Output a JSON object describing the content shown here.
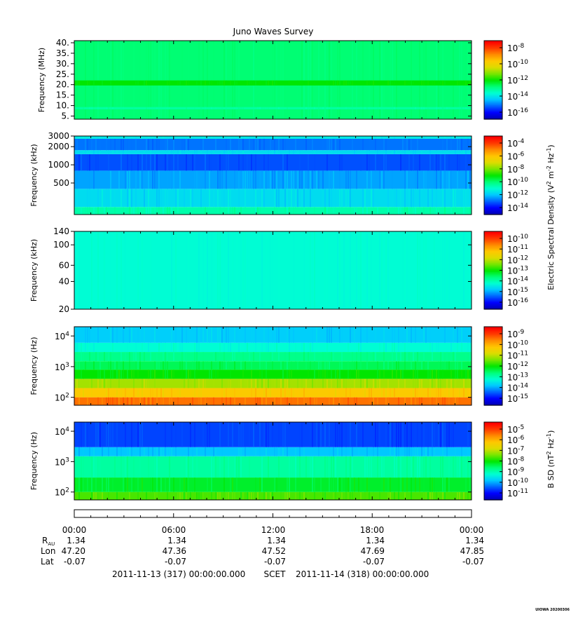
{
  "chart_data": {
    "type": "heatmap",
    "title": "Juno Waves Survey",
    "colorscale": [
      "#0000b4",
      "#0000ff",
      "#0064ff",
      "#00c8ff",
      "#00ffd2",
      "#00ff78",
      "#00e600",
      "#78e600",
      "#dcdc00",
      "#ffc800",
      "#ff8c00",
      "#ff3c00",
      "#ff0000"
    ],
    "panels": [
      {
        "ylabel": "Frequency (MHz)",
        "yscale": "linear",
        "ylim": [
          3.5,
          41
        ],
        "yticks": [
          {
            "v": 40,
            "label": "40."
          },
          {
            "v": 35,
            "label": "35."
          },
          {
            "v": 30,
            "label": "30."
          },
          {
            "v": 25,
            "label": "25."
          },
          {
            "v": 20,
            "label": "20."
          },
          {
            "v": 15,
            "label": "15."
          },
          {
            "v": 10,
            "label": "10."
          },
          {
            "v": 5,
            "label": "5."
          }
        ],
        "cbar": {
          "ticks": [
            {
              "m": "10",
              "e": "-8"
            },
            {
              "m": "10",
              "e": "-10"
            },
            {
              "m": "10",
              "e": "-12"
            },
            {
              "m": "10",
              "e": "-14"
            },
            {
              "m": "10",
              "e": "-16"
            }
          ]
        },
        "bands": [
          {
            "from": 3.5,
            "to": 41,
            "level": 0.42,
            "noise": 0.02
          },
          {
            "from": 19.6,
            "to": 22.0,
            "level": 0.5,
            "noise": 0.02
          },
          {
            "from": 8.2,
            "to": 9.3,
            "level": 0.38,
            "noise": 0.02
          }
        ]
      },
      {
        "ylabel": "Frequency (kHz)",
        "yscale": "log",
        "ylim": [
          150,
          3000
        ],
        "yticks": [
          {
            "v": 3000,
            "label": "3000"
          },
          {
            "v": 2000,
            "label": "2000"
          },
          {
            "v": 1000,
            "label": "1000"
          },
          {
            "v": 500,
            "label": "500"
          }
        ],
        "cbar": {
          "ticks": [
            {
              "m": "10",
              "e": "-4"
            },
            {
              "m": "10",
              "e": "-6"
            },
            {
              "m": "10",
              "e": "-8"
            },
            {
              "m": "10",
              "e": "-10"
            },
            {
              "m": "10",
              "e": "-12"
            },
            {
              "m": "10",
              "e": "-14"
            }
          ]
        },
        "bands": [
          {
            "from": 150,
            "to": 200,
            "level": 0.37,
            "noise": 0.05
          },
          {
            "from": 200,
            "to": 400,
            "level": 0.28,
            "noise": 0.05
          },
          {
            "from": 400,
            "to": 800,
            "level": 0.22,
            "noise": 0.05
          },
          {
            "from": 800,
            "to": 1500,
            "level": 0.15,
            "noise": 0.04
          },
          {
            "from": 1500,
            "to": 1750,
            "level": 0.28,
            "noise": 0.03
          },
          {
            "from": 1750,
            "to": 2700,
            "level": 0.18,
            "noise": 0.03
          },
          {
            "from": 2700,
            "to": 3000,
            "level": 0.3,
            "noise": 0.03
          }
        ]
      },
      {
        "ylabel": "Frequency (kHz)",
        "yscale": "log",
        "ylim": [
          20,
          140
        ],
        "yticks": [
          {
            "v": 140,
            "label": "140"
          },
          {
            "v": 100,
            "label": "100"
          },
          {
            "v": 60,
            "label": "60"
          },
          {
            "v": 40,
            "label": "40"
          },
          {
            "v": 20,
            "label": "20"
          }
        ],
        "cbar": {
          "ticks": [
            {
              "m": "10",
              "e": "-10"
            },
            {
              "m": "10",
              "e": "-11"
            },
            {
              "m": "10",
              "e": "-12"
            },
            {
              "m": "10",
              "e": "-13"
            },
            {
              "m": "10",
              "e": "-14"
            },
            {
              "m": "10",
              "e": "-15"
            },
            {
              "m": "10",
              "e": "-16"
            }
          ]
        },
        "bands": [
          {
            "from": 20,
            "to": 140,
            "level": 0.33,
            "noise": 0.02
          }
        ]
      },
      {
        "ylabel": "Frequency (Hz)",
        "yscale": "log",
        "ylim": [
          55,
          20000
        ],
        "yticks": [
          {
            "v": 10000,
            "m": "10",
            "e": "4"
          },
          {
            "v": 1000,
            "m": "10",
            "e": "3"
          },
          {
            "v": 100,
            "m": "10",
            "e": "2"
          }
        ],
        "cbar": {
          "ticks": [
            {
              "m": "10",
              "e": "-9"
            },
            {
              "m": "10",
              "e": "-10"
            },
            {
              "m": "10",
              "e": "-11"
            },
            {
              "m": "10",
              "e": "-12"
            },
            {
              "m": "10",
              "e": "-13"
            },
            {
              "m": "10",
              "e": "-14"
            },
            {
              "m": "10",
              "e": "-15"
            }
          ]
        },
        "bands": [
          {
            "from": 55,
            "to": 100,
            "level": 0.86,
            "noise": 0.06
          },
          {
            "from": 100,
            "to": 200,
            "level": 0.74,
            "noise": 0.06
          },
          {
            "from": 200,
            "to": 400,
            "level": 0.62,
            "noise": 0.06
          },
          {
            "from": 400,
            "to": 800,
            "level": 0.5,
            "noise": 0.05
          },
          {
            "from": 800,
            "to": 1500,
            "level": 0.44,
            "noise": 0.05
          },
          {
            "from": 1500,
            "to": 3000,
            "level": 0.4,
            "noise": 0.04
          },
          {
            "from": 3000,
            "to": 6000,
            "level": 0.33,
            "noise": 0.04
          },
          {
            "from": 6000,
            "to": 20000,
            "level": 0.26,
            "noise": 0.04
          }
        ]
      },
      {
        "ylabel": "Frequency (Hz)",
        "yscale": "log",
        "ylim": [
          55,
          20000
        ],
        "yticks": [
          {
            "v": 10000,
            "m": "10",
            "e": "4"
          },
          {
            "v": 1000,
            "m": "10",
            "e": "3"
          },
          {
            "v": 100,
            "m": "10",
            "e": "2"
          }
        ],
        "cbar": {
          "ticks": [
            {
              "m": "10",
              "e": "-5"
            },
            {
              "m": "10",
              "e": "-6"
            },
            {
              "m": "10",
              "e": "-7"
            },
            {
              "m": "10",
              "e": "-8"
            },
            {
              "m": "10",
              "e": "-9"
            },
            {
              "m": "10",
              "e": "-10"
            },
            {
              "m": "10",
              "e": "-11"
            }
          ]
        },
        "bands": [
          {
            "from": 55,
            "to": 100,
            "level": 0.55,
            "noise": 0.07
          },
          {
            "from": 100,
            "to": 300,
            "level": 0.47,
            "noise": 0.06
          },
          {
            "from": 300,
            "to": 1500,
            "level": 0.38,
            "noise": 0.04
          },
          {
            "from": 1500,
            "to": 3000,
            "level": 0.25,
            "noise": 0.04
          },
          {
            "from": 3000,
            "to": 20000,
            "level": 0.14,
            "noise": 0.04
          }
        ]
      }
    ],
    "colorbar_labels": [
      {
        "text": "Electric Spectral Density (V",
        "sup1": "2",
        "mid": " m",
        "sup2": "-2",
        "mid2": " Hz",
        "sup3": "-1",
        "end": ")"
      },
      {
        "text": "B SD (nT",
        "sup1": "2",
        "mid": " Hz",
        "sup2": "-1",
        "end": ")"
      }
    ],
    "x_ticks": [
      "00:00",
      "06:00",
      "12:00",
      "18:00",
      "00:00"
    ],
    "ephemeris": [
      {
        "label": "R",
        "sub": "AU",
        "values": [
          "1.34",
          "1.34",
          "1.34",
          "1.34",
          "1.34"
        ]
      },
      {
        "label": "Lon",
        "values": [
          "47.20",
          "47.36",
          "47.52",
          "47.69",
          "47.85"
        ]
      },
      {
        "label": "Lat",
        "values": [
          "-0.07",
          "-0.07",
          "-0.07",
          "-0.07",
          "-0.07"
        ]
      }
    ],
    "footer": {
      "start": "2011-11-13 (317) 00:00:00.000",
      "mid": "SCET",
      "end": "2011-11-14 (318) 00:00:00.000"
    },
    "credit": "UIOWA 20200306"
  }
}
